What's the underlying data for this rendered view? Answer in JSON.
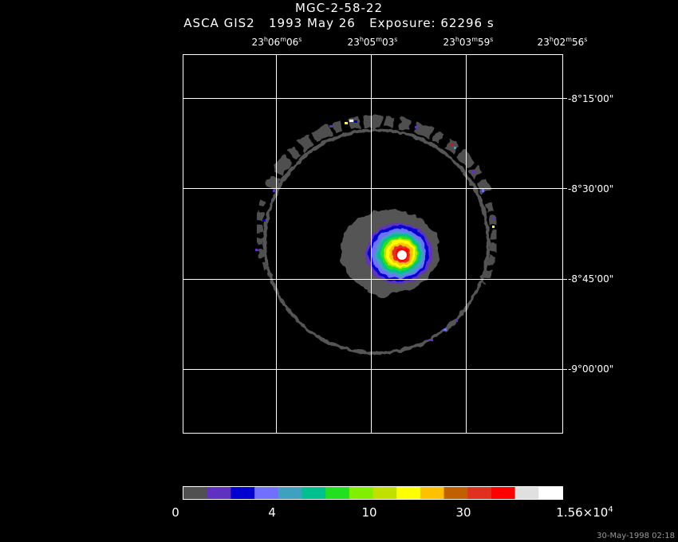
{
  "title": "MGC-2-58-22",
  "subtitle": "ASCA GIS2   1993 May 26   Exposure: 62296 s",
  "ra_labels": [
    {
      "h": "23",
      "m": "06",
      "s": "06"
    },
    {
      "h": "23",
      "m": "05",
      "s": "03"
    },
    {
      "h": "23",
      "m": "03",
      "s": "59"
    },
    {
      "h": "23",
      "m": "02",
      "s": "56"
    }
  ],
  "dec_labels": [
    "-8°15'00\"",
    "-8°30'00\"",
    "-8°45'00\"",
    "-9°00'00\""
  ],
  "colorbar": {
    "tick_labels": [
      "0",
      "4",
      "10",
      "30"
    ],
    "max_label_base": "1.56×10",
    "max_label_exp": "4",
    "colors": [
      "#505050",
      "#6030c0",
      "#0000d0",
      "#7070ff",
      "#40a0c0",
      "#00c090",
      "#20e020",
      "#80f000",
      "#c0e000",
      "#ffff00",
      "#ffc000",
      "#c06000",
      "#e03020",
      "#ff0000",
      "#e0e0e0",
      "#ffffff"
    ]
  },
  "timestamp": "30-May-1998 02:18"
}
